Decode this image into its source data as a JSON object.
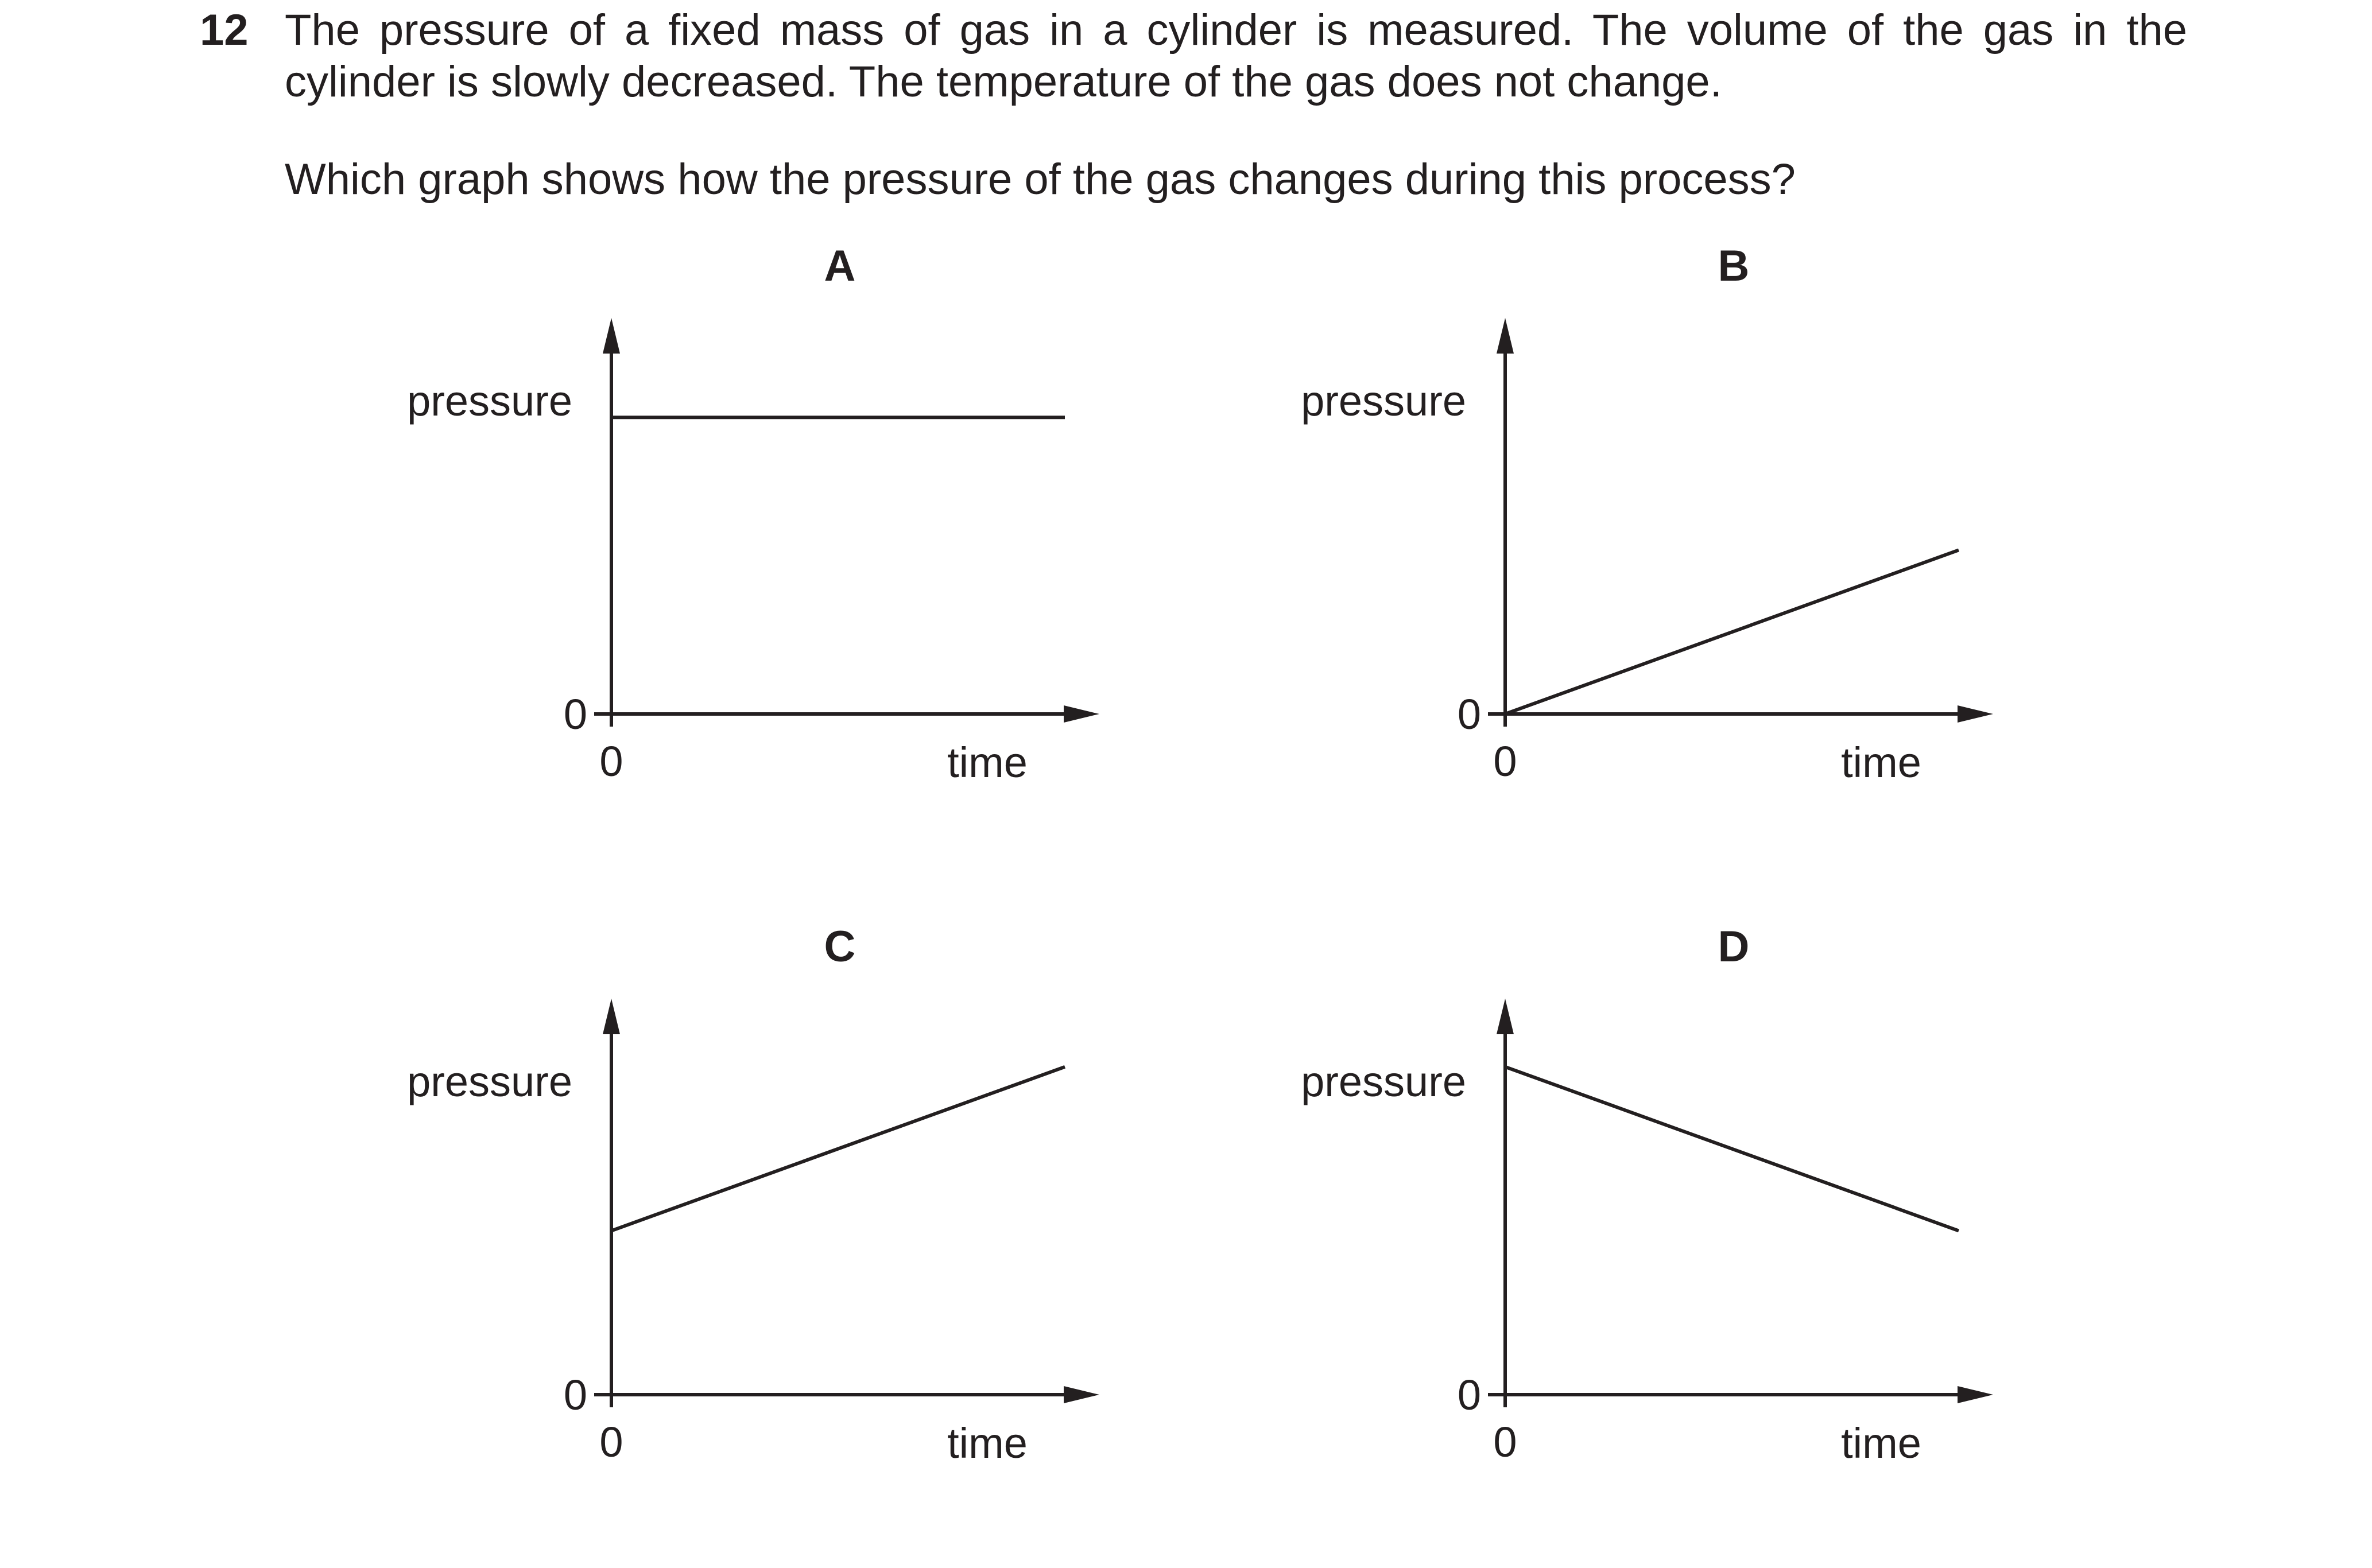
{
  "question": {
    "number": "12",
    "stem": "The pressure of a fixed mass of gas in a cylinder is measured. The volume of the gas in the cylinder is slowly decreased. The temperature of the gas does not change.",
    "prompt": "Which graph shows how the pressure of the gas changes during this process?"
  },
  "chart_data": [
    {
      "type": "line",
      "title": "A",
      "xlabel": "time",
      "ylabel": "pressure",
      "x_origin_label": "0",
      "y_origin_label": "0",
      "xlim": [
        0,
        1
      ],
      "ylim": [
        0,
        1
      ],
      "grid": false,
      "series": [
        {
          "x": [
            0,
            1
          ],
          "y": [
            0.76,
            0.76
          ]
        }
      ]
    },
    {
      "type": "line",
      "title": "B",
      "xlabel": "time",
      "ylabel": "pressure",
      "x_origin_label": "0",
      "y_origin_label": "0",
      "xlim": [
        0,
        1
      ],
      "ylim": [
        0,
        1
      ],
      "grid": false,
      "series": [
        {
          "x": [
            0,
            1
          ],
          "y": [
            0,
            0.42
          ]
        }
      ]
    },
    {
      "type": "line",
      "title": "C",
      "xlabel": "time",
      "ylabel": "pressure",
      "x_origin_label": "0",
      "y_origin_label": "0",
      "xlim": [
        0,
        1
      ],
      "ylim": [
        0,
        1
      ],
      "grid": false,
      "series": [
        {
          "x": [
            0,
            1
          ],
          "y": [
            0.42,
            0.84
          ]
        }
      ]
    },
    {
      "type": "line",
      "title": "D",
      "xlabel": "time",
      "ylabel": "pressure",
      "x_origin_label": "0",
      "y_origin_label": "0",
      "xlim": [
        0,
        1
      ],
      "ylim": [
        0,
        1
      ],
      "grid": false,
      "series": [
        {
          "x": [
            0,
            1
          ],
          "y": [
            0.84,
            0.42
          ]
        }
      ]
    }
  ]
}
